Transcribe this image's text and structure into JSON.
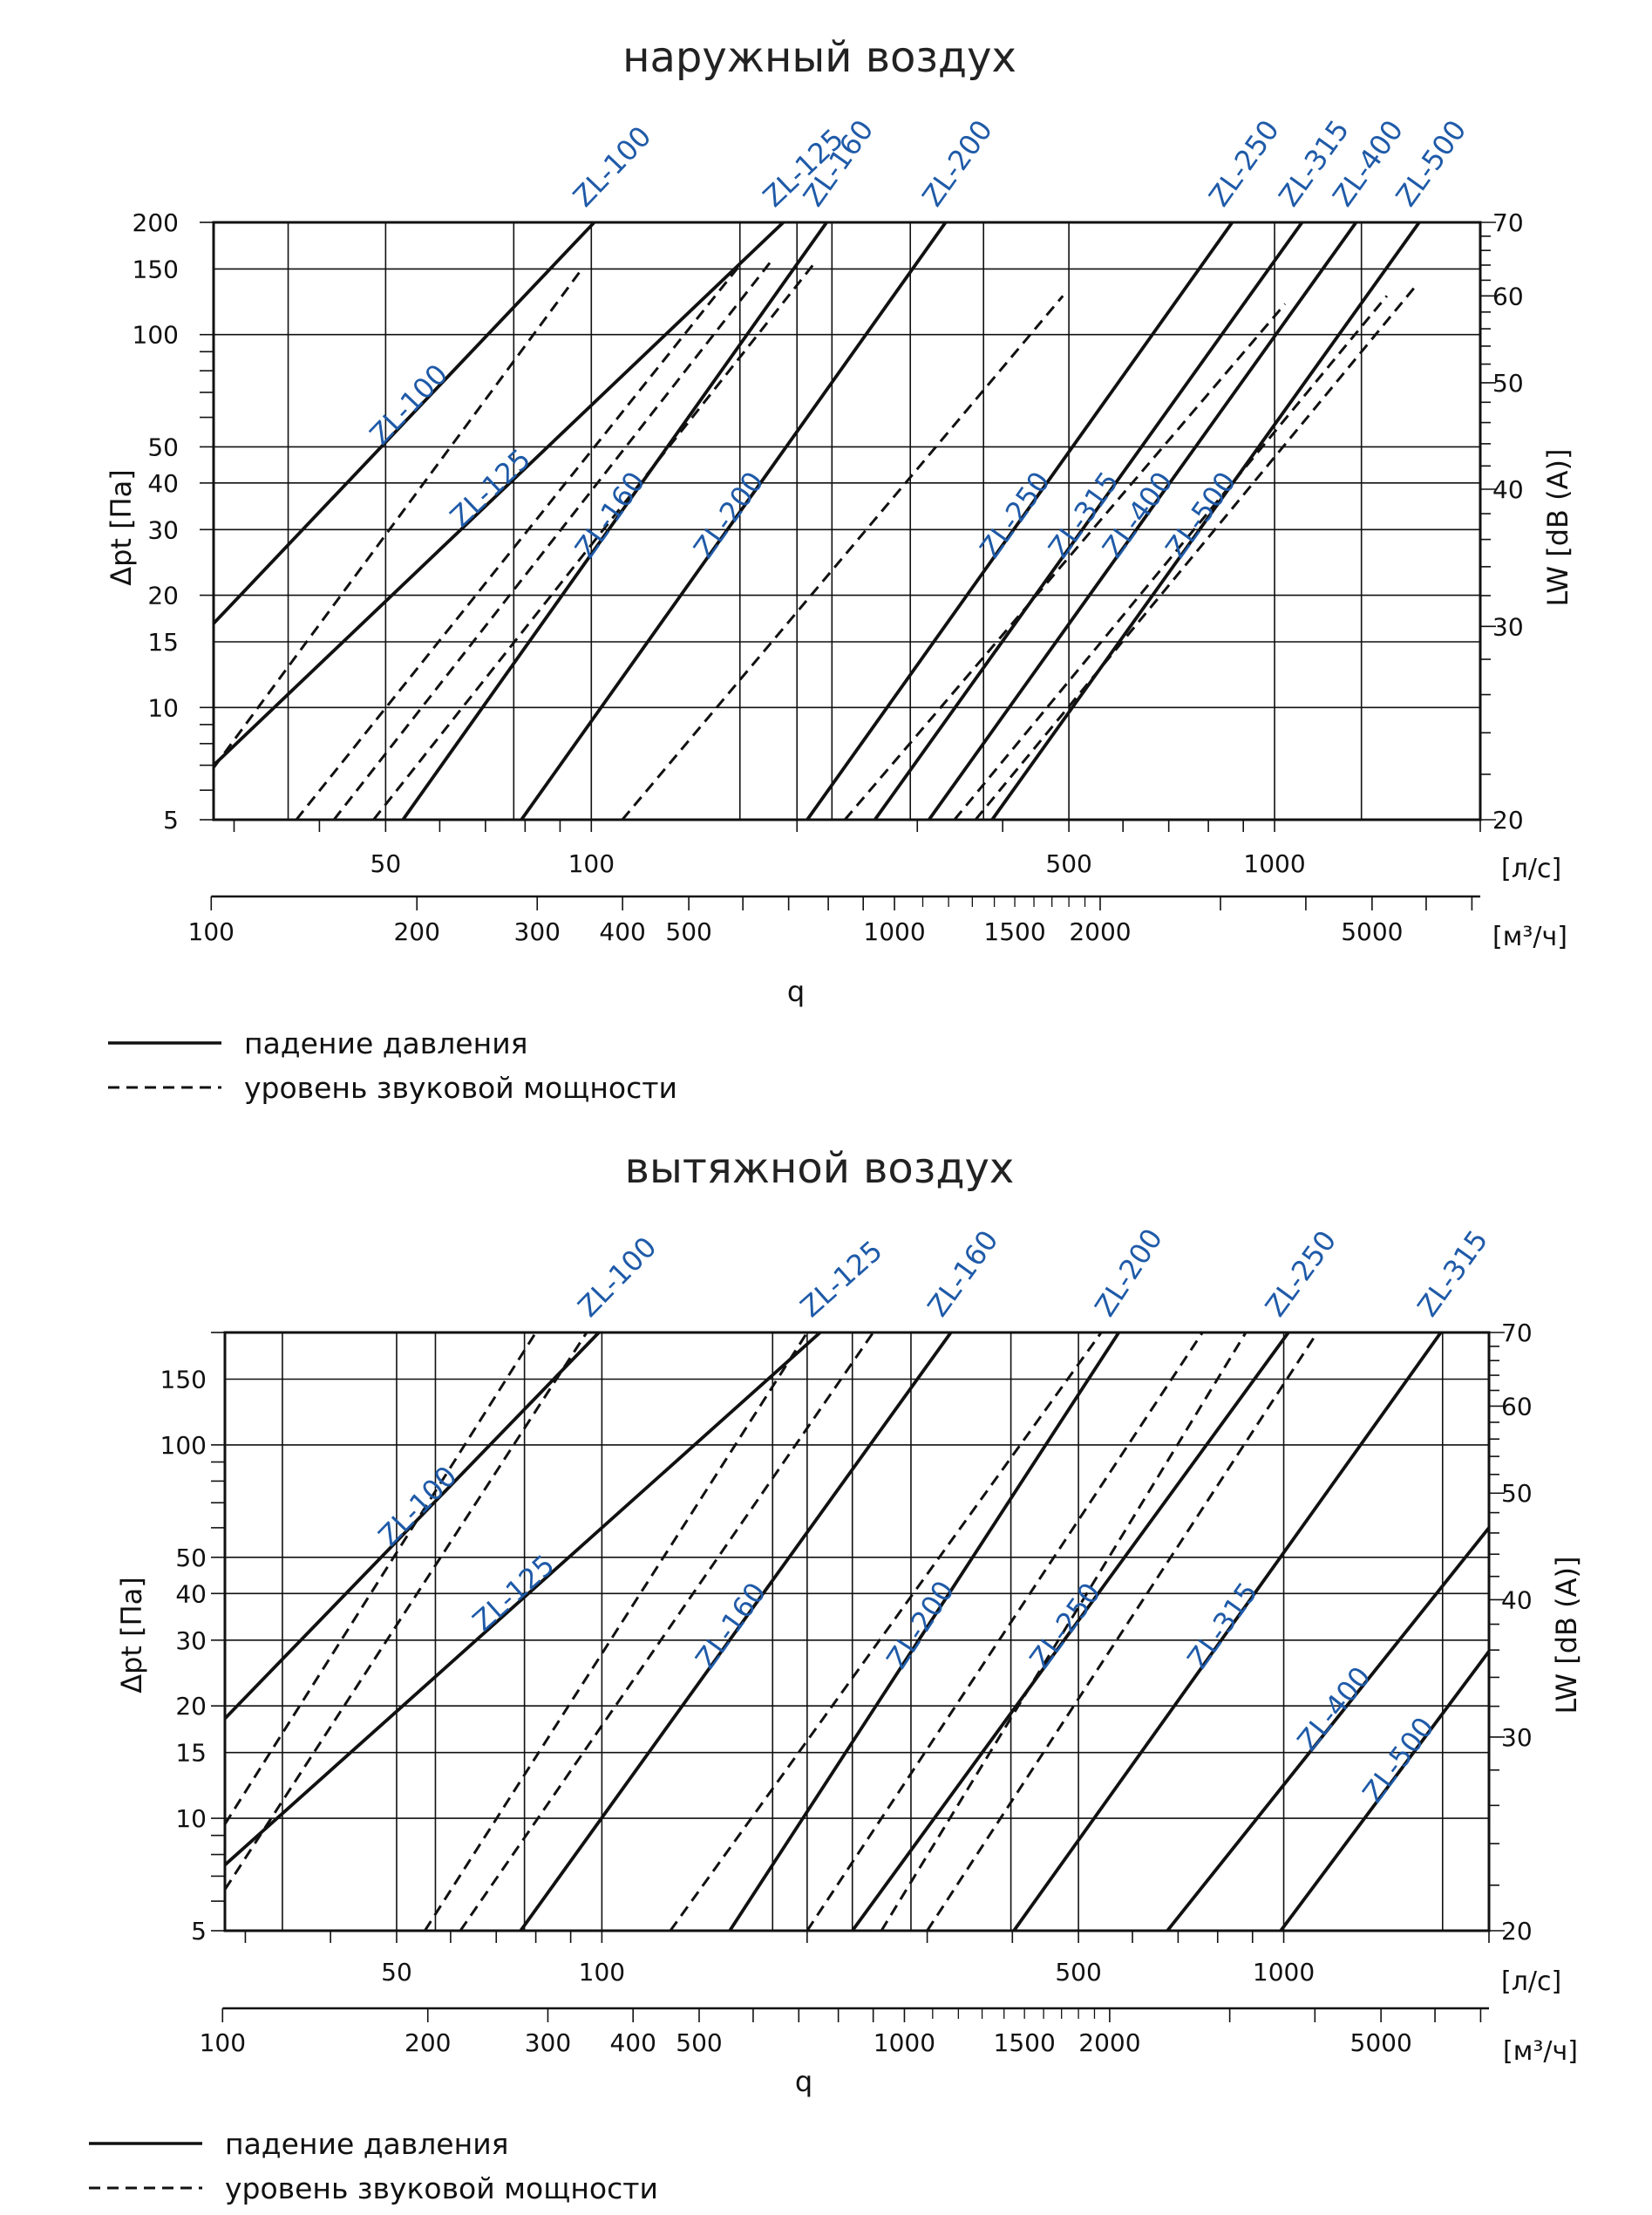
{
  "colors": {
    "line": "#111111",
    "series_label": "#1e5aa8",
    "grid": "#111111"
  },
  "legend": {
    "solid_label": "падение давления",
    "dashed_label": "уровень звуковой мощности"
  },
  "chart_data": [
    {
      "type": "line",
      "title": "наружный воздух",
      "ylabel": "Δpt [Па]",
      "y2label": "LW [dB (A)]",
      "xlabel": "q",
      "x_unit": "[л/с]",
      "x2_unit": "[м³/ч]",
      "x_scale": "log",
      "y_scale": "log",
      "xlim": [
        28,
        2000
      ],
      "ylim": [
        5,
        200
      ],
      "y2lim": [
        20,
        70
      ],
      "x_ticks": [
        "50",
        "100",
        "500",
        "1000"
      ],
      "x2_ticks": [
        "100",
        "200",
        "300",
        "400",
        "500",
        "1000",
        "1500",
        "2000",
        "5000"
      ],
      "y_ticks": [
        "5",
        "10",
        "15",
        "20",
        "30",
        "40",
        "50",
        "100",
        "150",
        "200"
      ],
      "y2_ticks": [
        "20",
        "30",
        "40",
        "50",
        "60",
        "70"
      ],
      "grid": true,
      "legend_position": "bottom-left",
      "pressure_series": [
        {
          "name": "ZL-100",
          "x": [
            28,
            101
          ],
          "y": [
            16.8,
            200
          ]
        },
        {
          "name": "ZL-125",
          "x": [
            28,
            191
          ],
          "y": [
            7,
            200
          ]
        },
        {
          "name": "ZL-160",
          "x": [
            53,
            221
          ],
          "y": [
            5,
            200
          ]
        },
        {
          "name": "ZL-200",
          "x": [
            79,
            330
          ],
          "y": [
            5,
            200
          ]
        },
        {
          "name": "ZL-250",
          "x": [
            207,
            867
          ],
          "y": [
            5,
            200
          ]
        },
        {
          "name": "ZL-315",
          "x": [
            260,
            1097
          ],
          "y": [
            5,
            200
          ]
        },
        {
          "name": "ZL-400",
          "x": [
            312,
            1316
          ],
          "y": [
            5,
            200
          ]
        },
        {
          "name": "ZL-500",
          "x": [
            386,
            1628
          ],
          "y": [
            5,
            200
          ]
        }
      ],
      "sound_series": [
        {
          "name": "ZL-100",
          "x": [
            28,
            96
          ],
          "y": [
            22.3,
            63
          ]
        },
        {
          "name": "ZL-125",
          "x": [
            37,
            165
          ],
          "y": [
            20,
            64
          ]
        },
        {
          "name": "ZL-160",
          "x": [
            42,
            185
          ],
          "y": [
            20,
            65
          ]
        },
        {
          "name": "ZL-200",
          "x": [
            48,
            211
          ],
          "y": [
            20,
            64
          ]
        },
        {
          "name": "ZL-250",
          "x": [
            111,
            490
          ],
          "y": [
            20,
            60
          ]
        },
        {
          "name": "ZL-315",
          "x": [
            235,
            1036
          ],
          "y": [
            20,
            59
          ]
        },
        {
          "name": "ZL-400",
          "x": [
            340,
            1460
          ],
          "y": [
            20,
            60
          ]
        },
        {
          "name": "ZL-500",
          "x": [
            365,
            1600
          ],
          "y": [
            20,
            61
          ]
        }
      ]
    },
    {
      "type": "line",
      "title": "вытяжной воздух",
      "ylabel": "Δpt [Па]",
      "y2label": "LW [dB (A)]",
      "xlabel": "q",
      "x_unit": "[л/с]",
      "x2_unit": "[м³/ч]",
      "x_scale": "log",
      "y_scale": "log",
      "xlim": [
        28,
        2000
      ],
      "ylim": [
        5,
        200
      ],
      "y2lim": [
        20,
        70
      ],
      "x_ticks": [
        "50",
        "100",
        "500",
        "1000"
      ],
      "x2_ticks": [
        "100",
        "200",
        "300",
        "400",
        "500",
        "1000",
        "1500",
        "2000",
        "5000"
      ],
      "y_ticks": [
        "5",
        "10",
        "15",
        "20",
        "30",
        "40",
        "50",
        "100",
        "150"
      ],
      "y2_ticks": [
        "20",
        "30",
        "40",
        "50",
        "60",
        "70"
      ],
      "grid": true,
      "legend_position": "bottom-left",
      "pressure_series": [
        {
          "name": "ZL-100",
          "x": [
            28,
            99
          ],
          "y": [
            18.5,
            200
          ]
        },
        {
          "name": "ZL-125",
          "x": [
            28,
            209
          ],
          "y": [
            7.5,
            200
          ]
        },
        {
          "name": "ZL-160",
          "x": [
            76,
            325
          ],
          "y": [
            5,
            200
          ]
        },
        {
          "name": "ZL-200",
          "x": [
            154,
            573
          ],
          "y": [
            5,
            200
          ]
        },
        {
          "name": "ZL-250",
          "x": [
            233,
            1016
          ],
          "y": [
            5,
            200
          ]
        },
        {
          "name": "ZL-315",
          "x": [
            402,
            1700
          ],
          "y": [
            5,
            200
          ]
        },
        {
          "name": "ZL-400",
          "x": [
            675,
            2000
          ],
          "y": [
            5,
            60
          ]
        },
        {
          "name": "ZL-500",
          "x": [
            990,
            2000
          ],
          "y": [
            5,
            28
          ]
        }
      ],
      "sound_series": [
        {
          "name": "ZL-100",
          "x": [
            28,
            80
          ],
          "y": [
            25,
            70
          ]
        },
        {
          "name": "ZL-125",
          "x": [
            28,
            95
          ],
          "y": [
            21.8,
            70
          ]
        },
        {
          "name": "ZL-160",
          "x": [
            55,
            200
          ],
          "y": [
            20,
            70
          ]
        },
        {
          "name": "ZL-200",
          "x": [
            62,
            250
          ],
          "y": [
            20,
            70
          ]
        },
        {
          "name": "ZL-250",
          "x": [
            126,
            540
          ],
          "y": [
            20,
            70
          ]
        },
        {
          "name": "ZL-315",
          "x": [
            200,
            760
          ],
          "y": [
            20,
            70
          ]
        },
        {
          "name": "ZL-400",
          "x": [
            257,
            880
          ],
          "y": [
            20,
            70
          ]
        },
        {
          "name": "ZL-500",
          "x": [
            300,
            1120
          ],
          "y": [
            20,
            70
          ]
        }
      ]
    }
  ]
}
